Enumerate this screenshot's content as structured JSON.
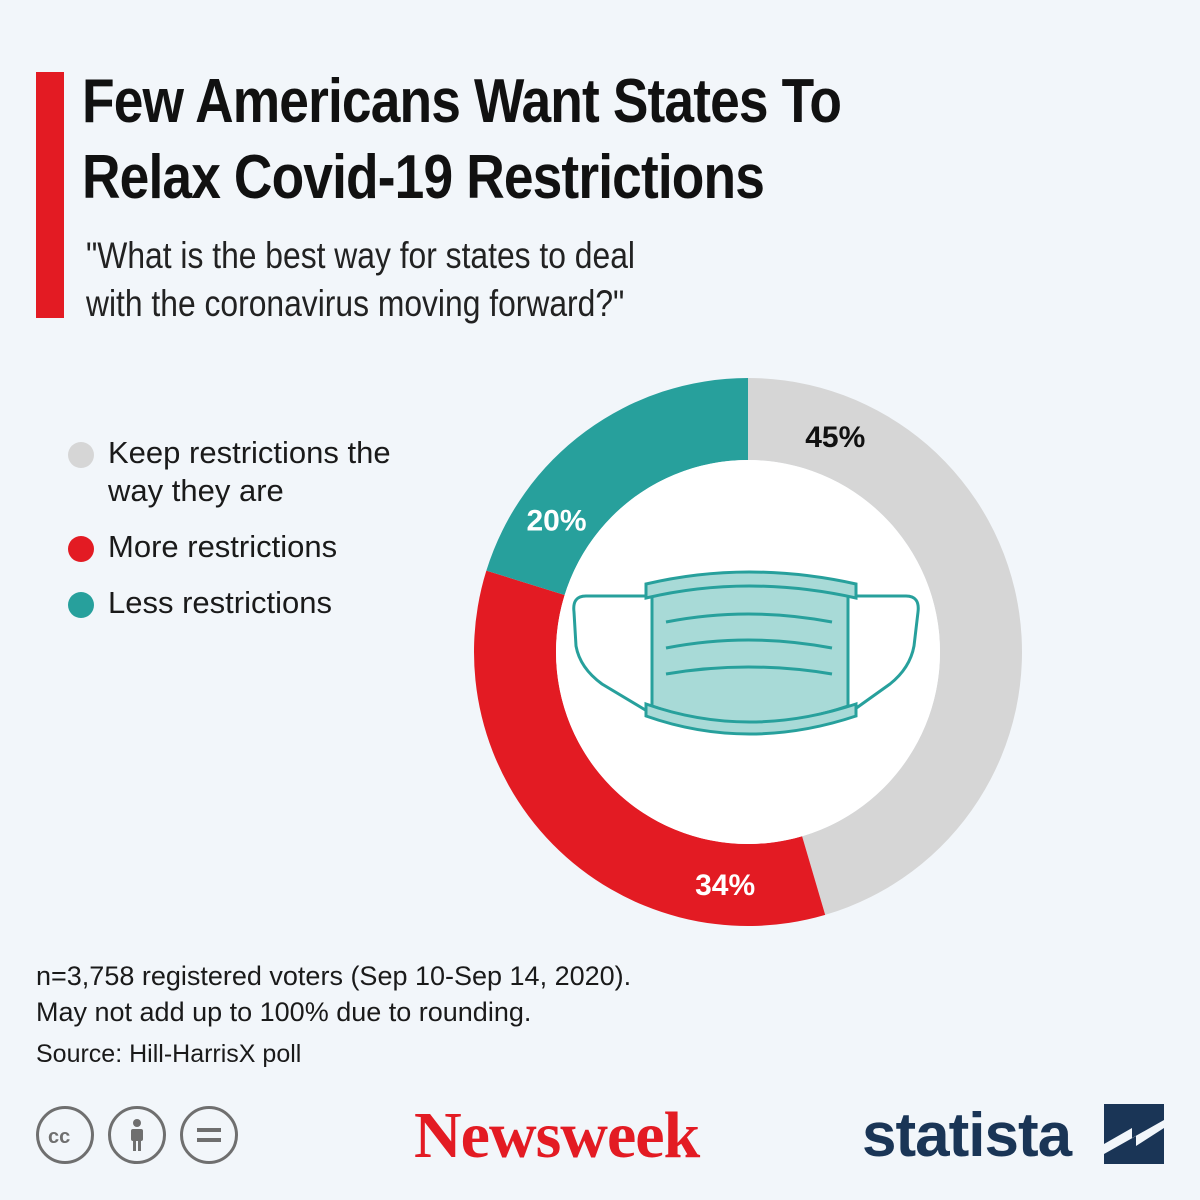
{
  "header": {
    "title_line1": "Few Americans Want States To",
    "title_line2": "Relax Covid-19 Restrictions",
    "subtitle_line1": "\"What is the best way for states to deal",
    "subtitle_line2": "with the coronavirus moving forward?\""
  },
  "legend": {
    "items": [
      {
        "label": "Keep restrictions the way they are",
        "color": "#d6d6d6"
      },
      {
        "label": "More restrictions",
        "color": "#e31b23"
      },
      {
        "label": "Less restrictions",
        "color": "#27a09c"
      }
    ]
  },
  "chart_data": {
    "type": "pie",
    "style": "donut",
    "title": "Few Americans Want States To Relax Covid-19 Restrictions",
    "subtitle": "\"What is the best way for states to deal with the coronavirus moving forward?\"",
    "categories": [
      "Keep restrictions the way they are",
      "More restrictions",
      "Less restrictions"
    ],
    "values": [
      45,
      34,
      20
    ],
    "labels": [
      "45%",
      "34%",
      "20%"
    ],
    "colors": [
      "#d6d6d6",
      "#e31b23",
      "#27a09c"
    ],
    "label_colors": [
      "#111111",
      "#ffffff",
      "#ffffff"
    ],
    "center_icon": "face-mask-icon"
  },
  "notes": {
    "line1": "n=3,758 registered voters (Sep 10-Sep 14, 2020).",
    "line2": "May not add up to 100% due to rounding.",
    "source": "Source: Hill-HarrisX poll"
  },
  "footer": {
    "newsweek": "Newsweek",
    "statista": "statista",
    "cc_icons": [
      "cc-icon",
      "attribution-icon",
      "no-derivatives-icon"
    ]
  }
}
